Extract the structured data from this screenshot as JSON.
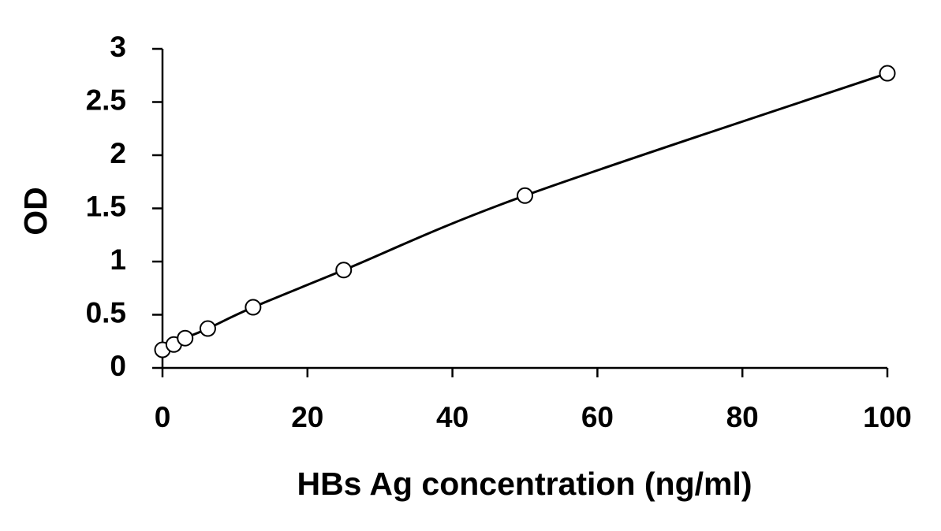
{
  "chart_data": {
    "type": "scatter",
    "x_label": "HBs Ag concentration (ng/ml)",
    "y_label": "OD",
    "series": [
      {
        "color": "#000000",
        "line": true,
        "marker": "circle",
        "x": [
          0,
          1.5625,
          3.125,
          6.25,
          12.5,
          25,
          50,
          100
        ],
        "values": [
          0.17,
          0.22,
          0.28,
          0.37,
          0.57,
          0.92,
          1.62,
          2.77
        ]
      }
    ],
    "xlim": [
      0,
      100
    ],
    "xticks": [
      0,
      20,
      40,
      60,
      80,
      100
    ],
    "ylim": [
      0,
      3
    ],
    "yticks": [
      0,
      0.5,
      1,
      1.5,
      2,
      2.5,
      3
    ],
    "grid": false
  }
}
